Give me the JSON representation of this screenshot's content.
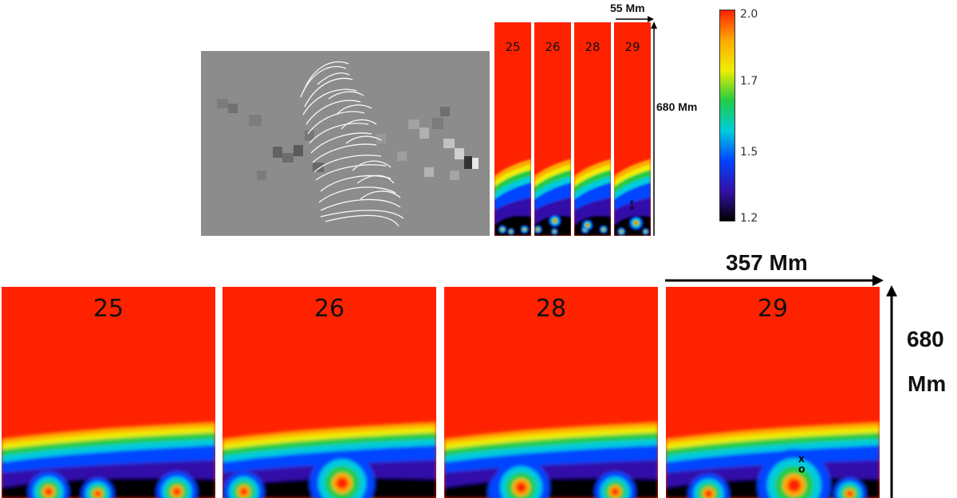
{
  "top_row": {
    "panel_labels": [
      "25",
      "26",
      "28",
      "29"
    ],
    "width_label": "55 Mm",
    "height_label": "680 Mm"
  },
  "bottom_row": {
    "panel_labels": [
      "25",
      "26",
      "28",
      "29"
    ],
    "width_label": "357 Mm",
    "height_label_line1": "680",
    "height_label_line2": "Mm"
  },
  "colorbar": {
    "ticks": [
      "2.0",
      "1.7",
      "1.5",
      "1.2"
    ],
    "colors": [
      "#ff2200",
      "#ffaa00",
      "#eeee00",
      "#22cc44",
      "#00ccdd",
      "#0044ff",
      "#3311aa",
      "#000000"
    ]
  },
  "markers": {
    "cross": "x",
    "circle": "o"
  }
}
